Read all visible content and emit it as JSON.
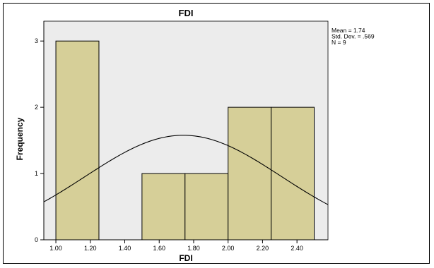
{
  "chart_data": {
    "type": "bar",
    "title": "FDI",
    "xlabel": "FDI",
    "ylabel": "Frequency",
    "bins": [
      {
        "from": 1.0,
        "to": 1.25,
        "count": 3
      },
      {
        "from": 1.25,
        "to": 1.5,
        "count": 0
      },
      {
        "from": 1.5,
        "to": 1.75,
        "count": 1
      },
      {
        "from": 1.75,
        "to": 2.0,
        "count": 1
      },
      {
        "from": 2.0,
        "to": 2.25,
        "count": 2
      },
      {
        "from": 2.25,
        "to": 2.5,
        "count": 2
      }
    ],
    "x_ticks": [
      1.0,
      1.2,
      1.4,
      1.6,
      1.8,
      2.0,
      2.2,
      2.4
    ],
    "x_tick_labels": [
      "1.00",
      "1.20",
      "1.40",
      "1.60",
      "1.80",
      "2.00",
      "2.20",
      "2.40"
    ],
    "y_ticks": [
      0,
      1,
      2,
      3
    ],
    "y_tick_labels": [
      "0",
      "1",
      "2",
      "3"
    ],
    "xlim": [
      0.93,
      2.58
    ],
    "ylim": [
      0,
      3.3
    ],
    "normal_curve": {
      "mean": 1.74,
      "sd": 0.569,
      "n": 9,
      "bin_width": 0.25
    },
    "stats_lines": [
      "Mean = 1.74",
      "Std. Dev. = .569",
      "N = 9"
    ],
    "colors": {
      "bar_fill": "#d6cf98",
      "bar_stroke": "#000000",
      "plot_bg": "#ececec",
      "curve": "#000000"
    },
    "grid": false,
    "legend": "none"
  }
}
